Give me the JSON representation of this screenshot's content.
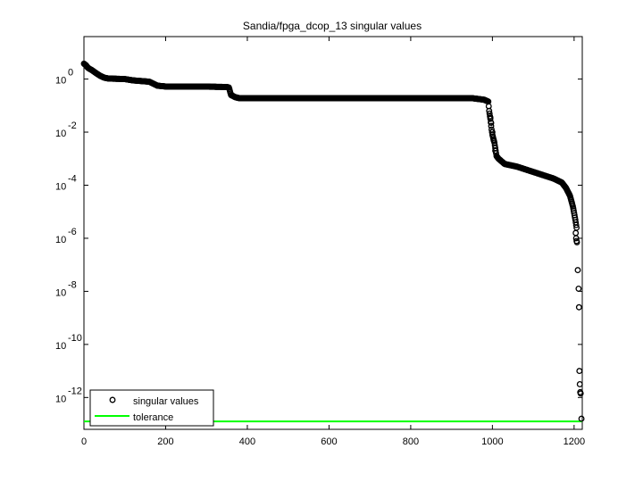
{
  "chart_data": {
    "type": "scatter",
    "title": "Sandia/fpga_dcop_13 singular values",
    "xlabel": "",
    "ylabel": "",
    "xlim": [
      0,
      1220
    ],
    "ylim_exponent": [
      -13.2,
      1.6
    ],
    "yscale": "log",
    "grid": false,
    "legend_position": "bottom-left",
    "x_ticks": [
      0,
      200,
      400,
      600,
      800,
      1000,
      1200
    ],
    "x_tick_labels": [
      "0",
      "200",
      "400",
      "600",
      "800",
      "1000",
      "1200"
    ],
    "y_tick_exponents": [
      0,
      -2,
      -4,
      -6,
      -8,
      -10,
      -12
    ],
    "y_tick_labels": [
      {
        "base": "10",
        "exp": "0"
      },
      {
        "base": "10",
        "exp": "-2"
      },
      {
        "base": "10",
        "exp": "-4"
      },
      {
        "base": "10",
        "exp": "-6"
      },
      {
        "base": "10",
        "exp": "-8"
      },
      {
        "base": "10",
        "exp": "-10"
      },
      {
        "base": "10",
        "exp": "-12"
      }
    ],
    "series": [
      {
        "name": "singular values",
        "marker": "circle",
        "color": "#000000",
        "log10_profile": [
          [
            0,
            0.58
          ],
          [
            5,
            0.52
          ],
          [
            10,
            0.42
          ],
          [
            20,
            0.33
          ],
          [
            30,
            0.22
          ],
          [
            40,
            0.12
          ],
          [
            50,
            0.05
          ],
          [
            60,
            0.02
          ],
          [
            100,
            0.0
          ],
          [
            120,
            -0.05
          ],
          [
            160,
            -0.1
          ],
          [
            180,
            -0.25
          ],
          [
            200,
            -0.28
          ],
          [
            280,
            -0.28
          ],
          [
            350,
            -0.3
          ],
          [
            355,
            -0.32
          ],
          [
            360,
            -0.6
          ],
          [
            370,
            -0.68
          ],
          [
            380,
            -0.72
          ],
          [
            950,
            -0.72
          ],
          [
            980,
            -0.78
          ],
          [
            990,
            -0.85
          ],
          [
            992,
            -1.2
          ],
          [
            995,
            -1.5
          ],
          [
            998,
            -1.9
          ],
          [
            1000,
            -2.1
          ],
          [
            1005,
            -2.4
          ],
          [
            1010,
            -2.9
          ],
          [
            1015,
            -3.0
          ],
          [
            1030,
            -3.2
          ],
          [
            1060,
            -3.3
          ],
          [
            1100,
            -3.5
          ],
          [
            1150,
            -3.75
          ],
          [
            1170,
            -3.9
          ],
          [
            1180,
            -4.1
          ],
          [
            1190,
            -4.4
          ],
          [
            1197,
            -4.8
          ],
          [
            1203,
            -5.3
          ],
          [
            1206,
            -5.6
          ]
        ],
        "tail_points": [
          [
            995,
            -1.45
          ],
          [
            997,
            -1.65
          ],
          [
            1000,
            -2.0
          ],
          [
            1003,
            -2.3
          ],
          [
            1007,
            -2.7
          ],
          [
            1204,
            -5.8
          ],
          [
            1205,
            -6.0
          ],
          [
            1206,
            -6.1
          ],
          [
            1207,
            -6.15
          ],
          [
            1209,
            -7.2
          ],
          [
            1211,
            -7.9
          ],
          [
            1212,
            -8.6
          ],
          [
            1213,
            -11.0
          ],
          [
            1214,
            -11.5
          ],
          [
            1215,
            -11.8
          ],
          [
            1216,
            -11.85
          ],
          [
            1218,
            -12.8
          ]
        ]
      },
      {
        "name": "tolerance",
        "type": "line",
        "color": "#00ff00",
        "log10_value": -12.9,
        "x_range": [
          0,
          1220
        ]
      }
    ],
    "legend": [
      "singular values",
      "tolerance"
    ]
  }
}
